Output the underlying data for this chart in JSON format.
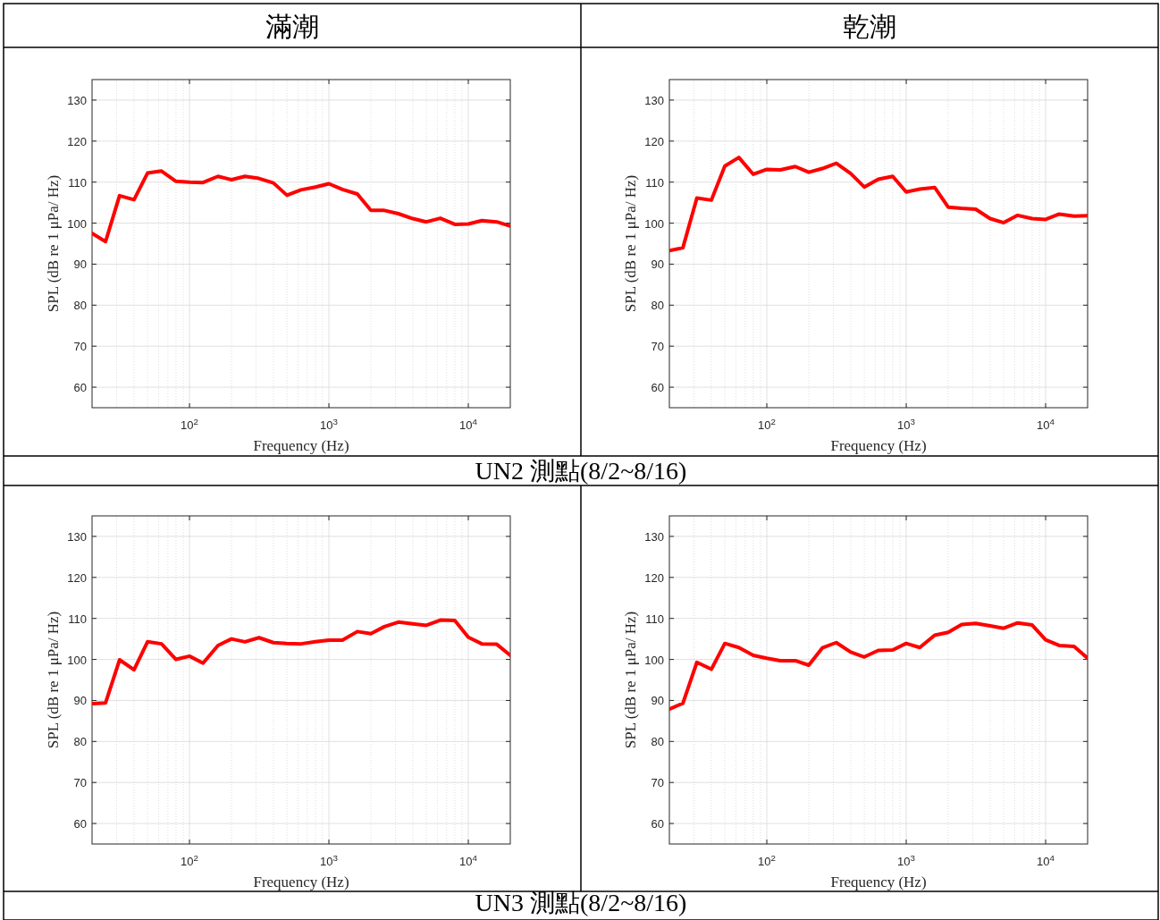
{
  "chart_data": [
    {
      "type": "line",
      "title": "滿潮",
      "annotations": [
        "UN2 測點(8/2~8/16)"
      ],
      "xlabel": "Frequency (Hz)",
      "ylabel": "SPL (dB re 1 μPa/ Hz)",
      "log": "x",
      "grid": true,
      "xlim": [
        20,
        20000
      ],
      "ylim": [
        55,
        135
      ],
      "xticks": [
        {
          "value": 100,
          "label": "10$^{2}$"
        },
        {
          "value": 1000,
          "label": "10$^{3}$"
        },
        {
          "value": 10000,
          "label": "10$^{4}$"
        }
      ],
      "yticks": [
        60,
        70,
        80,
        90,
        100,
        110,
        120,
        130
      ],
      "x": [
        20,
        25,
        31.5,
        40,
        50,
        63,
        80,
        100,
        125,
        160,
        200,
        250,
        315,
        400,
        500,
        630,
        800,
        1000,
        1250,
        1600,
        2000,
        2500,
        3150,
        4000,
        5000,
        6300,
        8000,
        10000,
        12500,
        16000,
        20000
      ],
      "series": [
        {
          "color": "#ff0000",
          "values": [
            97.5,
            95.5,
            106.7,
            105.7,
            112.2,
            112.7,
            110.2,
            110.0,
            109.9,
            111.4,
            110.6,
            111.4,
            110.9,
            109.8,
            106.8,
            108.1,
            108.8,
            109.6,
            108.2,
            107.1,
            103.1,
            103.1,
            102.3,
            101.1,
            100.3,
            101.2,
            99.7,
            99.8,
            100.6,
            100.3,
            99.3
          ]
        }
      ]
    },
    {
      "type": "line",
      "title": "乾潮",
      "xlabel": "Frequency (Hz)",
      "ylabel": "SPL (dB re 1 μPa/ Hz)",
      "log": "x",
      "grid": true,
      "xlim": [
        20,
        20000
      ],
      "ylim": [
        55,
        135
      ],
      "xticks": [
        {
          "value": 100,
          "label": "10$^{2}$"
        },
        {
          "value": 1000,
          "label": "10$^{3}$"
        },
        {
          "value": 10000,
          "label": "10$^{4}$"
        }
      ],
      "yticks": [
        60,
        70,
        80,
        90,
        100,
        110,
        120,
        130
      ],
      "x": [
        20,
        25,
        31.5,
        40,
        50,
        63,
        80,
        100,
        125,
        160,
        200,
        250,
        315,
        400,
        500,
        630,
        800,
        1000,
        1250,
        1600,
        2000,
        2500,
        3150,
        4000,
        5000,
        6300,
        8000,
        10000,
        12500,
        16000,
        20000
      ],
      "series": [
        {
          "color": "#ff0000",
          "values": [
            93.3,
            94.0,
            106.1,
            105.6,
            113.9,
            116.0,
            111.9,
            113.1,
            113.0,
            113.8,
            112.4,
            113.3,
            114.6,
            112.1,
            108.8,
            110.7,
            111.4,
            107.6,
            108.3,
            108.7,
            103.9,
            103.6,
            103.4,
            101.1,
            100.1,
            101.9,
            101.1,
            100.9,
            102.2,
            101.7,
            101.8
          ]
        }
      ]
    },
    {
      "type": "line",
      "annotations": [
        "UN3 測點(8/2~8/16)"
      ],
      "xlabel": "Frequency (Hz)",
      "ylabel": "SPL (dB re 1 μPa/ Hz)",
      "log": "x",
      "grid": true,
      "xlim": [
        20,
        20000
      ],
      "ylim": [
        55,
        135
      ],
      "xticks": [
        {
          "value": 100,
          "label": "10$^{2}$"
        },
        {
          "value": 1000,
          "label": "10$^{3}$"
        },
        {
          "value": 10000,
          "label": "10$^{4}$"
        }
      ],
      "yticks": [
        60,
        70,
        80,
        90,
        100,
        110,
        120,
        130
      ],
      "x": [
        20,
        25,
        31.5,
        40,
        50,
        63,
        80,
        100,
        125,
        160,
        200,
        250,
        315,
        400,
        500,
        630,
        800,
        1000,
        1250,
        1600,
        2000,
        2500,
        3150,
        4000,
        5000,
        6300,
        8000,
        10000,
        12500,
        16000,
        20000
      ],
      "series": [
        {
          "color": "#ff0000",
          "values": [
            89.2,
            89.4,
            99.9,
            97.5,
            104.3,
            103.8,
            100.0,
            100.8,
            99.1,
            103.4,
            105.0,
            104.3,
            105.3,
            104.1,
            103.9,
            103.8,
            104.3,
            104.7,
            104.7,
            106.8,
            106.3,
            108.0,
            109.1,
            108.7,
            108.3,
            109.6,
            109.5,
            105.4,
            103.8,
            103.7,
            101.0
          ]
        }
      ]
    },
    {
      "type": "line",
      "xlabel": "Frequency (Hz)",
      "ylabel": "SPL (dB re 1 μPa/ Hz)",
      "log": "x",
      "grid": true,
      "xlim": [
        20,
        20000
      ],
      "ylim": [
        55,
        135
      ],
      "xticks": [
        {
          "value": 100,
          "label": "10$^{2}$"
        },
        {
          "value": 1000,
          "label": "10$^{3}$"
        },
        {
          "value": 10000,
          "label": "10$^{4}$"
        }
      ],
      "yticks": [
        60,
        70,
        80,
        90,
        100,
        110,
        120,
        130
      ],
      "x": [
        20,
        25,
        31.5,
        40,
        50,
        63,
        80,
        100,
        125,
        160,
        200,
        250,
        315,
        400,
        500,
        630,
        800,
        1000,
        1250,
        1600,
        2000,
        2500,
        3150,
        4000,
        5000,
        6300,
        8000,
        10000,
        12500,
        16000,
        20000
      ],
      "series": [
        {
          "color": "#ff0000",
          "values": [
            87.9,
            89.3,
            99.3,
            97.6,
            103.9,
            102.9,
            101.0,
            100.3,
            99.7,
            99.7,
            98.6,
            102.8,
            104.1,
            101.8,
            100.6,
            102.2,
            102.3,
            103.9,
            102.9,
            105.9,
            106.6,
            108.5,
            108.8,
            108.2,
            107.6,
            108.9,
            108.4,
            104.8,
            103.4,
            103.2,
            100.3
          ]
        }
      ]
    }
  ]
}
